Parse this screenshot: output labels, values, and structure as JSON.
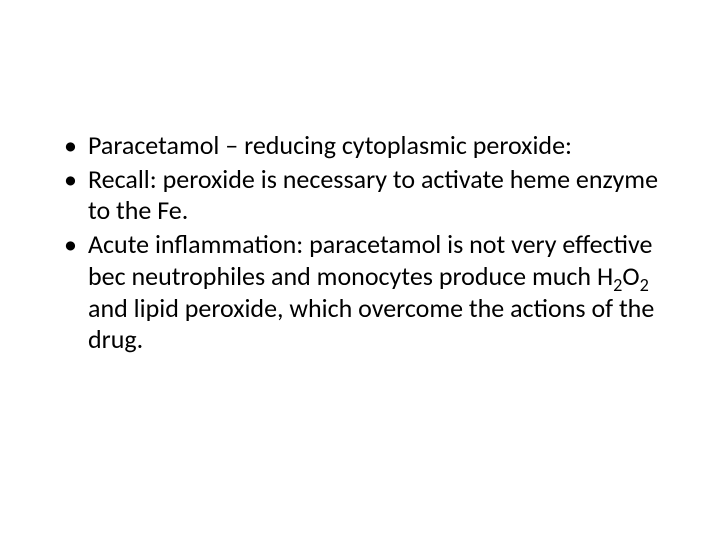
{
  "slide": {
    "background_color": "#ffffff",
    "text_color": "#000000",
    "font_family": "Calibri",
    "font_size_pt": 26,
    "bullets": [
      {
        "text": "Paracetamol – reducing cytoplasmic peroxide:"
      },
      {
        "text": "Recall: peroxide is necessary to activate heme enzyme to the Fe."
      },
      {
        "text_html": "Acute inflammation: paracetamol is not very effective bec neutrophiles and monocytes produce much H<sub>2</sub>O<sub>2</sub> and lipid peroxide, which overcome the actions of the drug."
      }
    ]
  }
}
